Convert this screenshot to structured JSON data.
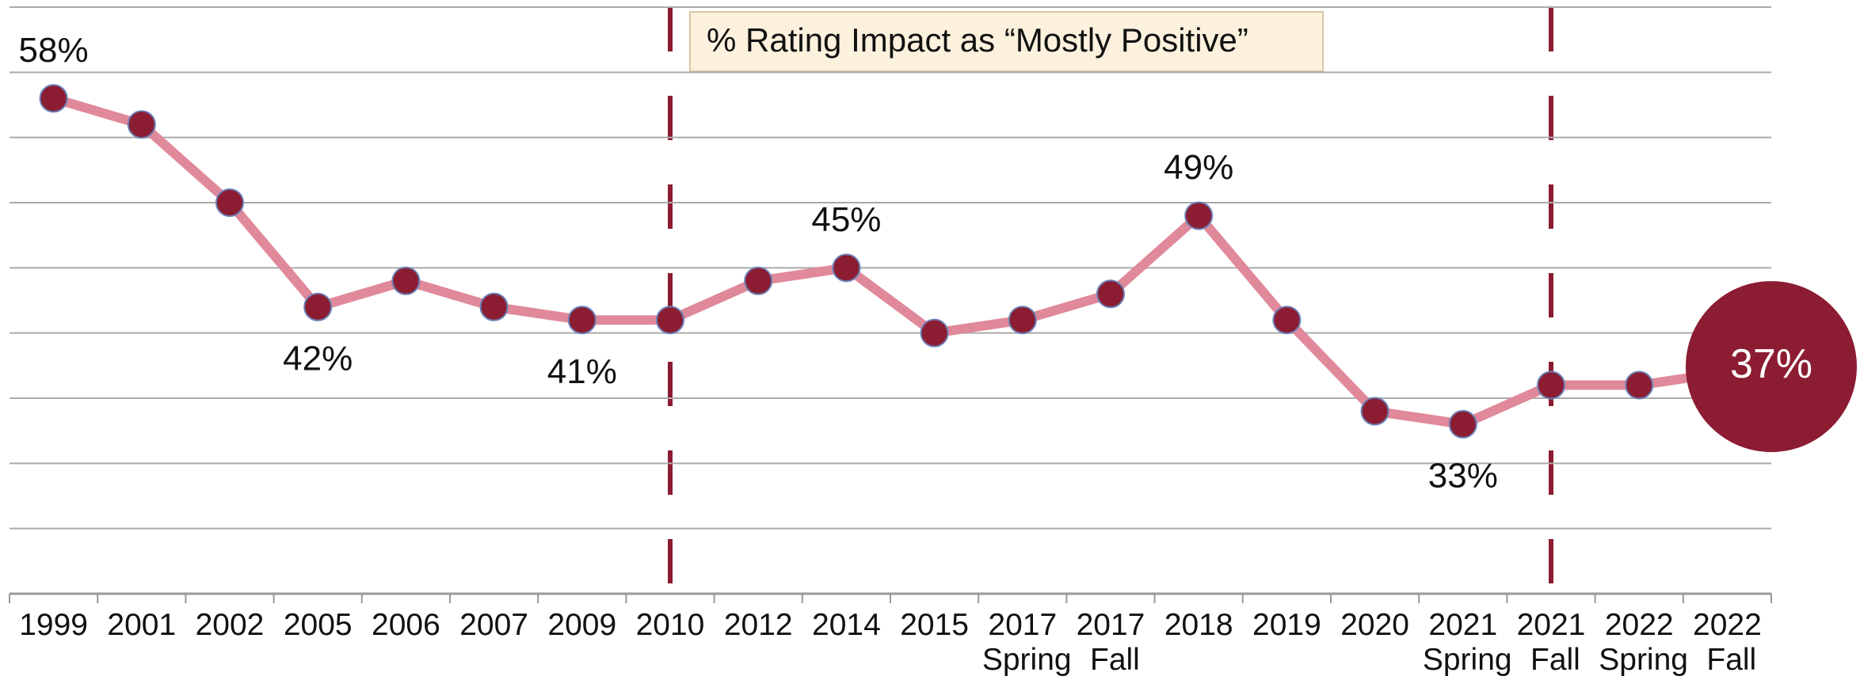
{
  "chart_data": {
    "type": "line",
    "annotation": "% Rating Impact as “Mostly Positive”",
    "categories": [
      "1999",
      "2001",
      "2002",
      "2005",
      "2006",
      "2007",
      "2009",
      "2010",
      "2012",
      "2014",
      "2015",
      "2017 Spring",
      "2017 Fall",
      "2018",
      "2019",
      "2020",
      "2021 Spring",
      "2021 Fall",
      "2022 Spring",
      "2022 Fall"
    ],
    "series": [
      {
        "color": "#e0899a",
        "values": [
          58,
          56,
          50,
          42,
          44,
          42,
          41,
          41,
          44,
          45,
          40,
          41,
          43,
          49,
          41,
          34,
          33,
          36,
          36,
          37
        ],
        "value_labels": [
          "58%",
          null,
          null,
          "42%",
          null,
          null,
          "41%",
          null,
          null,
          "45%",
          null,
          null,
          null,
          "49%",
          null,
          null,
          "33%",
          null,
          null,
          "37%"
        ]
      }
    ],
    "marker_color": "#8b1c31",
    "vlines": [
      7,
      17
    ],
    "ylim": [
      20,
      65
    ],
    "yticks": [
      20,
      25,
      30,
      35,
      40,
      45,
      50,
      55,
      60,
      65
    ],
    "grid": true
  }
}
